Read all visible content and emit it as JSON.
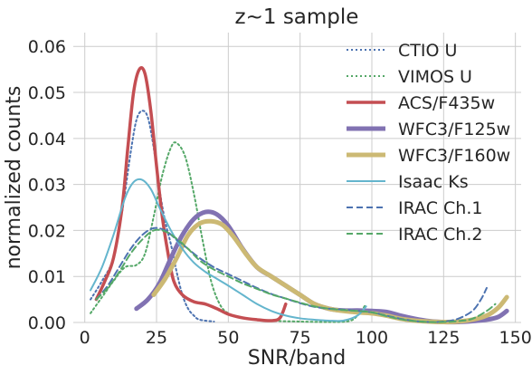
{
  "chart_data": {
    "type": "line",
    "title": "z~1 sample",
    "xlabel": "SNR/band",
    "ylabel": "normalized counts",
    "xlim": [
      -4,
      152
    ],
    "ylim": [
      0,
      0.063
    ],
    "x_ticks": [
      0,
      25,
      50,
      75,
      100,
      125,
      150
    ],
    "y_ticks": [
      0.0,
      0.01,
      0.02,
      0.03,
      0.04,
      0.05,
      0.06
    ],
    "y_tick_labels": [
      "0.00",
      "0.01",
      "0.02",
      "0.03",
      "0.04",
      "0.05",
      "0.06"
    ],
    "grid": true,
    "legend_position": "top-right",
    "series": [
      {
        "name": "CTIO U",
        "color": "#4c72b0",
        "style": "dotted",
        "width": 2,
        "points": [
          [
            2,
            0.005
          ],
          [
            6,
            0.009
          ],
          [
            10,
            0.014
          ],
          [
            13,
            0.024
          ],
          [
            16,
            0.037
          ],
          [
            18,
            0.044
          ],
          [
            20,
            0.046
          ],
          [
            22,
            0.0445
          ],
          [
            24,
            0.038
          ],
          [
            26,
            0.029
          ],
          [
            28,
            0.022
          ],
          [
            30,
            0.017
          ],
          [
            32,
            0.011
          ],
          [
            34,
            0.006
          ],
          [
            36,
            0.003
          ],
          [
            38,
            0.0015
          ],
          [
            40,
            0.0006
          ],
          [
            45,
            0.0002
          ]
        ]
      },
      {
        "name": "VIMOS U",
        "color": "#55a868",
        "style": "dotted",
        "width": 2,
        "points": [
          [
            2,
            0.002
          ],
          [
            6,
            0.0055
          ],
          [
            10,
            0.009
          ],
          [
            14,
            0.012
          ],
          [
            18,
            0.0125
          ],
          [
            21,
            0.015
          ],
          [
            24,
            0.023
          ],
          [
            27,
            0.032
          ],
          [
            30,
            0.038
          ],
          [
            32,
            0.039
          ],
          [
            35,
            0.036
          ],
          [
            38,
            0.028
          ],
          [
            41,
            0.018
          ],
          [
            44,
            0.009
          ],
          [
            47,
            0.004
          ],
          [
            50,
            0.002
          ],
          [
            55,
            0.001
          ],
          [
            65,
            0.0004
          ],
          [
            75,
            0.0002
          ],
          [
            85,
            0.0001
          ],
          [
            92,
            0.0003
          ],
          [
            95,
            0.0015
          ],
          [
            98,
            0.004
          ]
        ]
      },
      {
        "name": "ACS/F435w",
        "color": "#c44e52",
        "style": "solid",
        "width": 3.5,
        "points": [
          [
            4,
            0.005
          ],
          [
            7,
            0.009
          ],
          [
            10,
            0.014
          ],
          [
            13,
            0.025
          ],
          [
            15,
            0.038
          ],
          [
            17,
            0.05
          ],
          [
            19,
            0.055
          ],
          [
            21,
            0.054
          ],
          [
            23,
            0.046
          ],
          [
            25,
            0.034
          ],
          [
            27,
            0.023
          ],
          [
            29,
            0.015
          ],
          [
            31,
            0.009
          ],
          [
            34,
            0.006
          ],
          [
            38,
            0.0045
          ],
          [
            42,
            0.004
          ],
          [
            46,
            0.003
          ],
          [
            50,
            0.0018
          ],
          [
            55,
            0.001
          ],
          [
            60,
            0.0006
          ],
          [
            65,
            0.0004
          ],
          [
            68,
            0.001
          ],
          [
            70,
            0.004
          ]
        ]
      },
      {
        "name": "WFC3/F125w",
        "color": "#8172b2",
        "style": "solid",
        "width": 5,
        "points": [
          [
            18,
            0.003
          ],
          [
            22,
            0.005
          ],
          [
            26,
            0.0085
          ],
          [
            30,
            0.014
          ],
          [
            34,
            0.019
          ],
          [
            38,
            0.0225
          ],
          [
            42,
            0.024
          ],
          [
            46,
            0.0235
          ],
          [
            50,
            0.021
          ],
          [
            55,
            0.016
          ],
          [
            60,
            0.012
          ],
          [
            65,
            0.01
          ],
          [
            70,
            0.008
          ],
          [
            75,
            0.006
          ],
          [
            80,
            0.004
          ],
          [
            85,
            0.003
          ],
          [
            90,
            0.0026
          ],
          [
            95,
            0.0026
          ],
          [
            100,
            0.0025
          ],
          [
            105,
            0.0023
          ],
          [
            110,
            0.0015
          ],
          [
            115,
            0.0008
          ],
          [
            120,
            0.0003
          ],
          [
            125,
            0.0001
          ],
          [
            130,
            0.0001
          ],
          [
            135,
            0.0003
          ],
          [
            140,
            0.0006
          ],
          [
            144,
            0.0012
          ],
          [
            147,
            0.0025
          ]
        ]
      },
      {
        "name": "WFC3/F160w",
        "color": "#ccb974",
        "style": "solid",
        "width": 5,
        "points": [
          [
            24,
            0.006
          ],
          [
            28,
            0.0095
          ],
          [
            32,
            0.014
          ],
          [
            36,
            0.019
          ],
          [
            40,
            0.0215
          ],
          [
            44,
            0.022
          ],
          [
            48,
            0.0212
          ],
          [
            52,
            0.0185
          ],
          [
            56,
            0.015
          ],
          [
            60,
            0.012
          ],
          [
            65,
            0.01
          ],
          [
            70,
            0.008
          ],
          [
            75,
            0.006
          ],
          [
            80,
            0.004
          ],
          [
            85,
            0.003
          ],
          [
            90,
            0.0025
          ],
          [
            95,
            0.0022
          ],
          [
            100,
            0.002
          ],
          [
            105,
            0.0015
          ],
          [
            110,
            0.0008
          ],
          [
            115,
            0.0004
          ],
          [
            120,
            0.0002
          ],
          [
            125,
            0.0001
          ],
          [
            130,
            0.0002
          ],
          [
            135,
            0.0006
          ],
          [
            140,
            0.0015
          ],
          [
            144,
            0.0032
          ],
          [
            147,
            0.0055
          ]
        ]
      },
      {
        "name": "Isaac Ks",
        "color": "#64b5cd",
        "style": "solid",
        "width": 2,
        "points": [
          [
            2,
            0.007
          ],
          [
            6,
            0.012
          ],
          [
            10,
            0.019
          ],
          [
            14,
            0.027
          ],
          [
            17,
            0.0305
          ],
          [
            20,
            0.031
          ],
          [
            23,
            0.029
          ],
          [
            26,
            0.025
          ],
          [
            30,
            0.02
          ],
          [
            34,
            0.016
          ],
          [
            38,
            0.013
          ],
          [
            42,
            0.011
          ],
          [
            46,
            0.0095
          ],
          [
            50,
            0.008
          ],
          [
            55,
            0.006
          ],
          [
            60,
            0.004
          ],
          [
            65,
            0.0025
          ],
          [
            70,
            0.0015
          ],
          [
            75,
            0.0009
          ],
          [
            80,
            0.0006
          ],
          [
            85,
            0.0004
          ],
          [
            90,
            0.0004
          ],
          [
            95,
            0.0015
          ],
          [
            98,
            0.0035
          ]
        ]
      },
      {
        "name": "IRAC Ch.1",
        "color": "#4c72b0",
        "style": "dashed",
        "width": 2,
        "points": [
          [
            4,
            0.005
          ],
          [
            8,
            0.008
          ],
          [
            12,
            0.012
          ],
          [
            16,
            0.016
          ],
          [
            20,
            0.019
          ],
          [
            24,
            0.0205
          ],
          [
            28,
            0.02
          ],
          [
            32,
            0.018
          ],
          [
            36,
            0.016
          ],
          [
            40,
            0.014
          ],
          [
            45,
            0.012
          ],
          [
            50,
            0.0105
          ],
          [
            55,
            0.009
          ],
          [
            60,
            0.0075
          ],
          [
            65,
            0.0062
          ],
          [
            70,
            0.0052
          ],
          [
            75,
            0.0042
          ],
          [
            80,
            0.0034
          ],
          [
            85,
            0.003
          ],
          [
            90,
            0.0028
          ],
          [
            95,
            0.0025
          ],
          [
            100,
            0.0022
          ],
          [
            105,
            0.0015
          ],
          [
            110,
            0.0008
          ],
          [
            115,
            0.0003
          ],
          [
            120,
            0.0001
          ],
          [
            125,
            0.0002
          ],
          [
            130,
            0.0008
          ],
          [
            135,
            0.0025
          ],
          [
            138,
            0.005
          ],
          [
            140,
            0.0075
          ]
        ]
      },
      {
        "name": "IRAC Ch.2",
        "color": "#55a868",
        "style": "dashed",
        "width": 2,
        "points": [
          [
            4,
            0.005
          ],
          [
            8,
            0.0075
          ],
          [
            12,
            0.011
          ],
          [
            16,
            0.015
          ],
          [
            20,
            0.018
          ],
          [
            24,
            0.02
          ],
          [
            28,
            0.0198
          ],
          [
            32,
            0.0182
          ],
          [
            36,
            0.016
          ],
          [
            40,
            0.0135
          ],
          [
            45,
            0.0115
          ],
          [
            50,
            0.01
          ],
          [
            55,
            0.0085
          ],
          [
            60,
            0.0073
          ],
          [
            65,
            0.0061
          ],
          [
            70,
            0.0052
          ],
          [
            75,
            0.0043
          ],
          [
            80,
            0.0035
          ],
          [
            85,
            0.003
          ],
          [
            90,
            0.0027
          ],
          [
            95,
            0.0025
          ],
          [
            100,
            0.0022
          ],
          [
            105,
            0.0014
          ],
          [
            110,
            0.0007
          ],
          [
            115,
            0.0003
          ],
          [
            120,
            0.0001
          ],
          [
            125,
            0.0001
          ],
          [
            130,
            0.0003
          ],
          [
            135,
            0.0008
          ],
          [
            140,
            0.0025
          ],
          [
            143,
            0.004
          ]
        ]
      }
    ]
  }
}
